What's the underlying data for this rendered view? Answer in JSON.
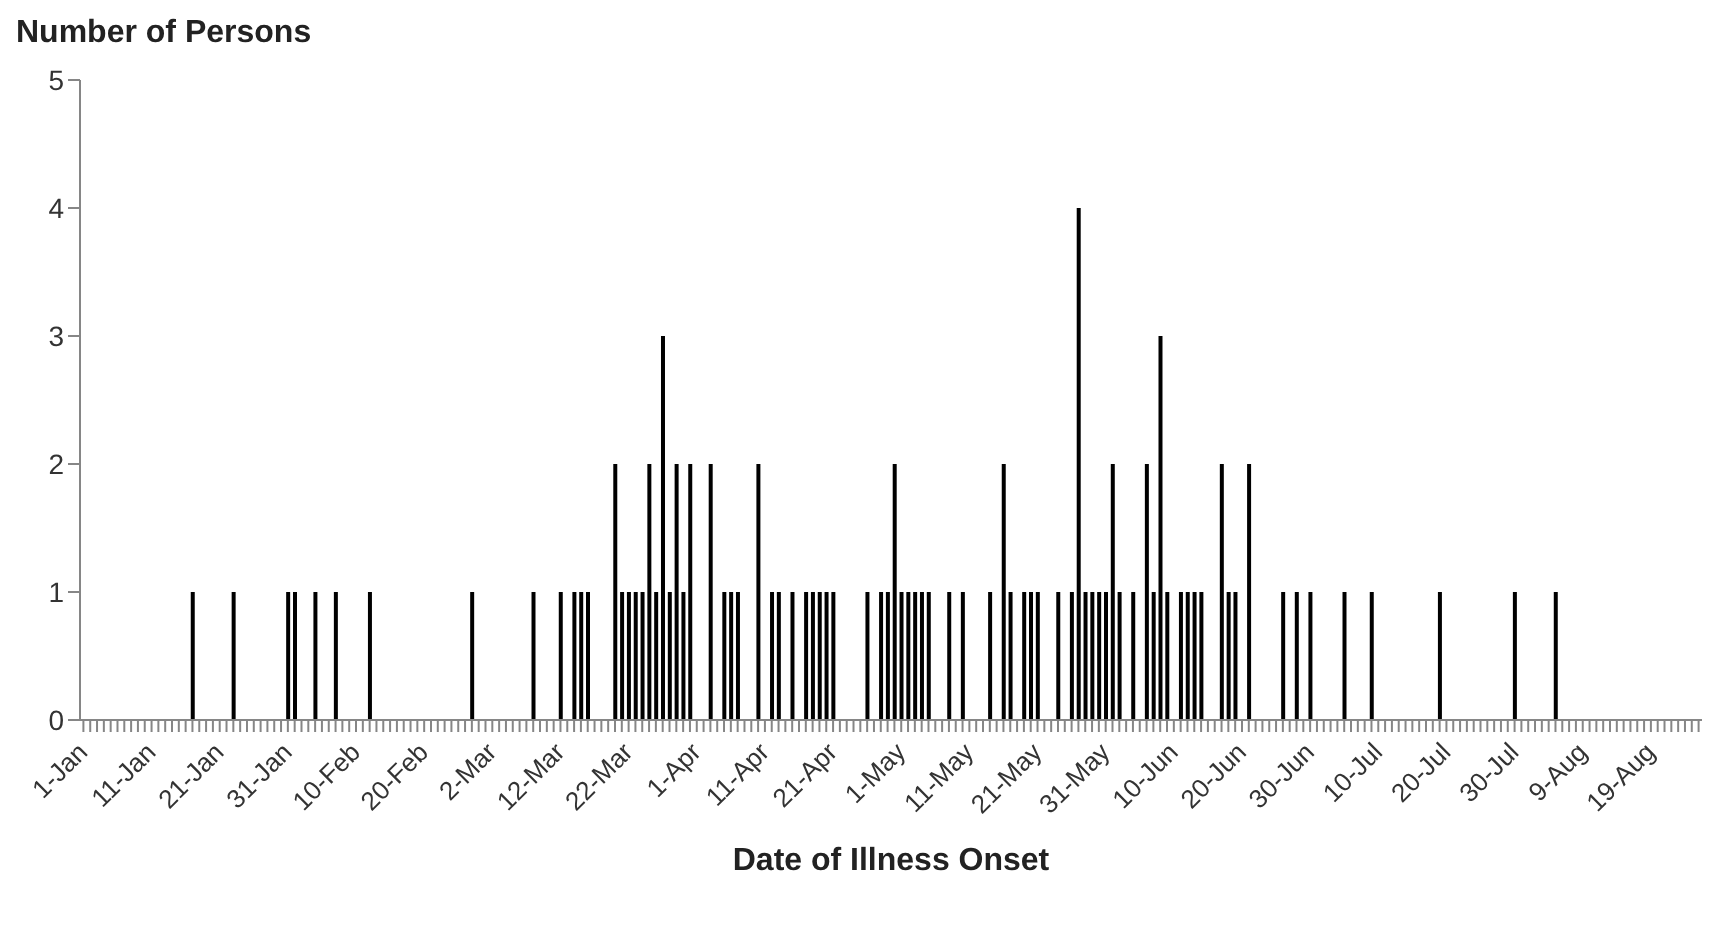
{
  "chart_data": {
    "type": "bar",
    "xlabel": "Date of Illness Onset",
    "ylabel": "Number of Persons",
    "color": "#000000",
    "categories": [
      "1-Jan",
      null,
      null,
      null,
      null,
      null,
      null,
      null,
      null,
      null,
      "11-Jan",
      null,
      null,
      null,
      null,
      null,
      null,
      null,
      null,
      null,
      "21-Jan",
      null,
      null,
      null,
      null,
      null,
      null,
      null,
      null,
      null,
      "31-Jan",
      null,
      null,
      null,
      null,
      null,
      null,
      null,
      null,
      null,
      "10-Feb",
      null,
      null,
      null,
      null,
      null,
      null,
      null,
      null,
      null,
      "20-Feb",
      null,
      null,
      null,
      null,
      null,
      null,
      null,
      null,
      null,
      "2-Mar",
      null,
      null,
      null,
      null,
      null,
      null,
      null,
      null,
      null,
      "12-Mar",
      null,
      null,
      null,
      null,
      null,
      null,
      null,
      null,
      null,
      "22-Mar",
      null,
      null,
      null,
      null,
      null,
      null,
      null,
      null,
      null,
      "1-Apr",
      null,
      null,
      null,
      null,
      null,
      null,
      null,
      null,
      null,
      "11-Apr",
      null,
      null,
      null,
      null,
      null,
      null,
      null,
      null,
      null,
      "21-Apr",
      null,
      null,
      null,
      null,
      null,
      null,
      null,
      null,
      null,
      "1-May",
      null,
      null,
      null,
      null,
      null,
      null,
      null,
      null,
      null,
      "11-May",
      null,
      null,
      null,
      null,
      null,
      null,
      null,
      null,
      null,
      "21-May",
      null,
      null,
      null,
      null,
      null,
      null,
      null,
      null,
      null,
      "31-May",
      null,
      null,
      null,
      null,
      null,
      null,
      null,
      null,
      null,
      "10-Jun",
      null,
      null,
      null,
      null,
      null,
      null,
      null,
      null,
      null,
      "20-Jun",
      null,
      null,
      null,
      null,
      null,
      null,
      null,
      null,
      null,
      "30-Jun",
      null,
      null,
      null,
      null,
      null,
      null,
      null,
      null,
      null,
      "10-Jul",
      null,
      null,
      null,
      null,
      null,
      null,
      null,
      null,
      null,
      "20-Jul",
      null,
      null,
      null,
      null,
      null,
      null,
      null,
      null,
      null,
      "30-Jul",
      null,
      null,
      null,
      null,
      null,
      null,
      null,
      null,
      null,
      "9-Aug",
      null,
      null,
      null,
      null,
      null,
      null,
      null,
      null,
      null,
      "19-Aug",
      null,
      null,
      null,
      null,
      null,
      null,
      null
    ],
    "values": [
      0,
      0,
      0,
      0,
      0,
      0,
      0,
      0,
      0,
      0,
      0,
      0,
      0,
      0,
      0,
      0,
      1,
      0,
      0,
      0,
      0,
      0,
      1,
      0,
      0,
      0,
      0,
      0,
      0,
      0,
      1,
      1,
      0,
      0,
      1,
      0,
      0,
      1,
      0,
      0,
      0,
      0,
      1,
      0,
      0,
      0,
      0,
      0,
      0,
      0,
      0,
      0,
      0,
      0,
      0,
      0,
      0,
      1,
      0,
      0,
      0,
      0,
      0,
      0,
      0,
      0,
      1,
      0,
      0,
      0,
      1,
      0,
      1,
      1,
      1,
      0,
      0,
      0,
      2,
      1,
      1,
      1,
      1,
      2,
      1,
      3,
      1,
      2,
      1,
      2,
      0,
      0,
      2,
      0,
      1,
      1,
      1,
      0,
      0,
      2,
      0,
      1,
      1,
      0,
      1,
      0,
      1,
      1,
      1,
      1,
      1,
      0,
      0,
      0,
      0,
      1,
      0,
      1,
      1,
      2,
      1,
      1,
      1,
      1,
      1,
      0,
      0,
      1,
      0,
      1,
      0,
      0,
      0,
      1,
      0,
      2,
      1,
      0,
      1,
      1,
      1,
      0,
      0,
      1,
      0,
      1,
      4,
      1,
      1,
      1,
      1,
      2,
      1,
      0,
      1,
      0,
      2,
      1,
      3,
      1,
      0,
      1,
      1,
      1,
      1,
      0,
      0,
      2,
      1,
      1,
      0,
      2,
      0,
      0,
      0,
      0,
      1,
      0,
      1,
      0,
      1,
      0,
      0,
      0,
      0,
      1,
      0,
      0,
      0,
      1,
      0,
      0,
      0,
      0,
      0,
      0,
      0,
      0,
      0,
      1,
      0,
      0,
      0,
      0,
      0,
      0,
      0,
      0,
      0,
      0,
      1,
      0,
      0,
      0,
      0,
      0,
      1,
      0,
      0,
      0,
      0,
      0,
      0,
      0,
      0,
      0,
      0,
      0,
      0,
      0,
      0,
      0,
      0,
      0,
      0,
      0,
      0,
      0
    ],
    "ylim": [
      0,
      5
    ],
    "yticks": [
      0,
      1,
      2,
      3,
      4,
      5
    ]
  }
}
